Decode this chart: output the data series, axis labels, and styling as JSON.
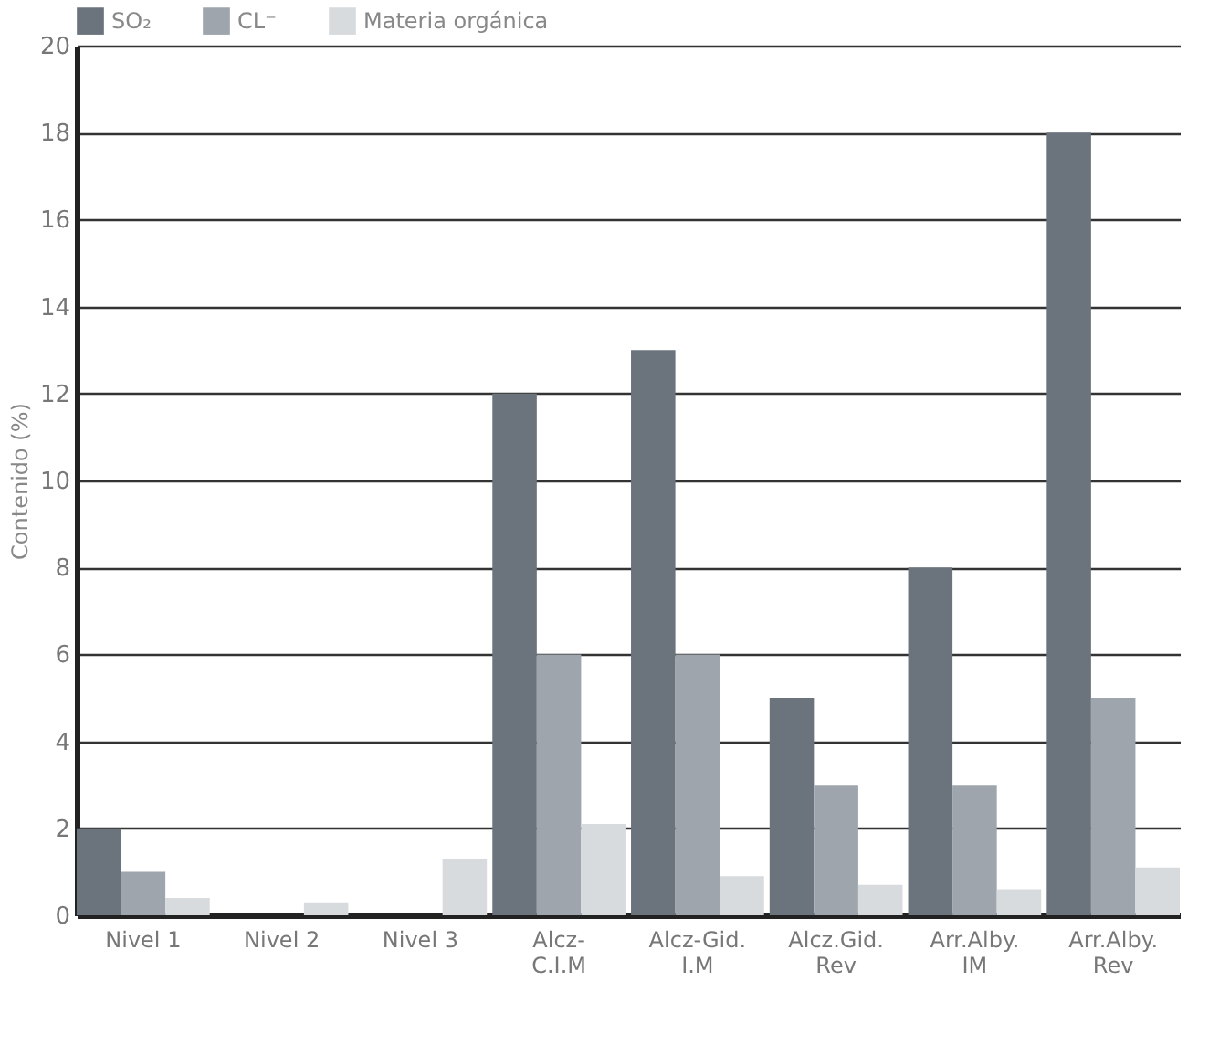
{
  "chart_data": {
    "type": "bar",
    "ylabel": "Contenido (%)",
    "categories": [
      "Nivel 1",
      "Nivel 2",
      "Nivel 3",
      "Alcz-C.I.M",
      "Alcz-Gid. I.M",
      "Alcz.Gid. Rev",
      "Arr.Alby. IM",
      "Arr.Alby. Rev"
    ],
    "series": [
      {
        "name": "SO₂",
        "color": "#6b737c",
        "values": [
          2,
          0,
          0,
          12,
          13,
          5,
          8,
          18
        ]
      },
      {
        "name": "CL⁻",
        "color": "#9ea5ac",
        "values": [
          1,
          0,
          0,
          6,
          6,
          3,
          3,
          5
        ]
      },
      {
        "name": "Materia orgánica",
        "color": "#d7dbde",
        "values": [
          0.4,
          0.3,
          1.3,
          2.1,
          0.9,
          0.7,
          0.6,
          1.1
        ]
      }
    ],
    "ylim": [
      0,
      20
    ],
    "yticks": [
      0,
      2,
      4,
      6,
      8,
      10,
      12,
      14,
      16,
      18,
      20
    ],
    "grid": "y",
    "legend": "top"
  }
}
